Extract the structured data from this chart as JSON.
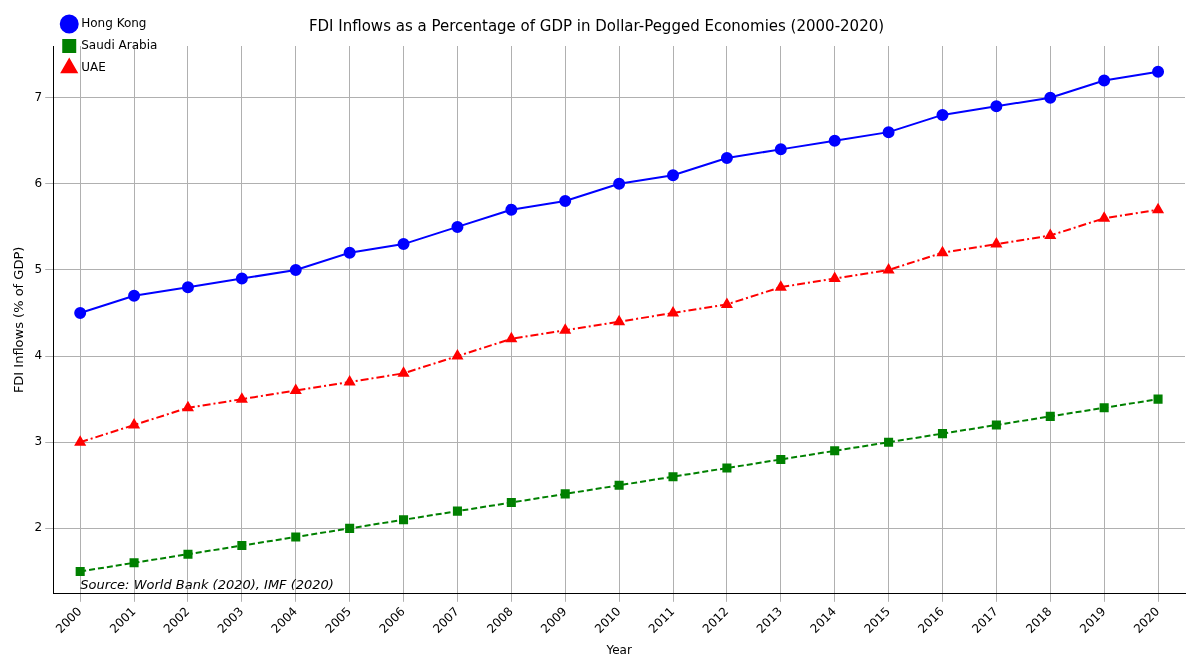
{
  "chart_data": {
    "type": "line",
    "title": "FDI Inflows as a Percentage of GDP in Dollar-Pegged Economies (2000-2020)",
    "xlabel": "Year",
    "ylabel": "FDI Inflows (% of GDP)",
    "categories": [
      "2000",
      "2001",
      "2002",
      "2003",
      "2004",
      "2005",
      "2006",
      "2007",
      "2008",
      "2009",
      "2010",
      "2011",
      "2012",
      "2013",
      "2014",
      "2015",
      "2016",
      "2017",
      "2018",
      "2019",
      "2020"
    ],
    "series": [
      {
        "name": "Hong Kong",
        "color": "#0000ff",
        "marker": "circle",
        "line_style": "solid",
        "values": [
          4.5,
          4.7,
          4.8,
          4.9,
          5.0,
          5.2,
          5.3,
          5.5,
          5.7,
          5.8,
          6.0,
          6.1,
          6.3,
          6.4,
          6.5,
          6.6,
          6.8,
          6.9,
          7.0,
          7.2,
          7.3
        ]
      },
      {
        "name": "Saudi Arabia",
        "color": "#008000",
        "marker": "square",
        "line_style": "dashed",
        "values": [
          1.5,
          1.6,
          1.7,
          1.8,
          1.9,
          2.0,
          2.1,
          2.2,
          2.3,
          2.4,
          2.5,
          2.6,
          2.7,
          2.8,
          2.9,
          3.0,
          3.1,
          3.2,
          3.3,
          3.4,
          3.5
        ]
      },
      {
        "name": "UAE",
        "color": "#ff0000",
        "marker": "triangle",
        "line_style": "dashdot",
        "values": [
          3.0,
          3.2,
          3.4,
          3.5,
          3.6,
          3.7,
          3.8,
          4.0,
          4.2,
          4.3,
          4.4,
          4.5,
          4.6,
          4.8,
          4.9,
          5.0,
          5.2,
          5.3,
          5.4,
          5.6,
          5.7
        ]
      }
    ],
    "ylim": [
      1.24,
      7.6
    ],
    "yticks": [
      2,
      3,
      4,
      5,
      6,
      7
    ],
    "grid": true,
    "legend": "top left",
    "annotations": [
      "Source: World Bank (2020), IMF (2020)"
    ]
  }
}
